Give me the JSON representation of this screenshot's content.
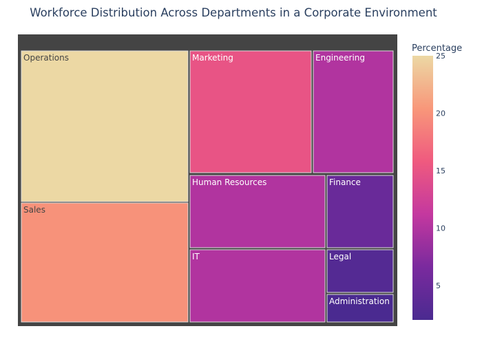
{
  "chart_data": {
    "type": "treemap",
    "title": "Workforce Distribution Across Departments in a Corporate Environment",
    "colorbar": {
      "title": "Percentage",
      "range": [
        2,
        25
      ],
      "ticks": [
        5,
        10,
        15,
        20,
        25
      ],
      "colorscale": [
        "#4a2a90",
        "#7a2a9e",
        "#c4389f",
        "#ef5a7f",
        "#f8977a",
        "#ecd8a4"
      ]
    },
    "items": [
      {
        "label": "Operations",
        "value": 25
      },
      {
        "label": "Sales",
        "value": 20
      },
      {
        "label": "Marketing",
        "value": 15
      },
      {
        "label": "Engineering",
        "value": 10
      },
      {
        "label": "Human Resources",
        "value": 10
      },
      {
        "label": "IT",
        "value": 10
      },
      {
        "label": "Finance",
        "value": 5
      },
      {
        "label": "Legal",
        "value": 3
      },
      {
        "label": "Administration",
        "value": 2
      }
    ]
  }
}
